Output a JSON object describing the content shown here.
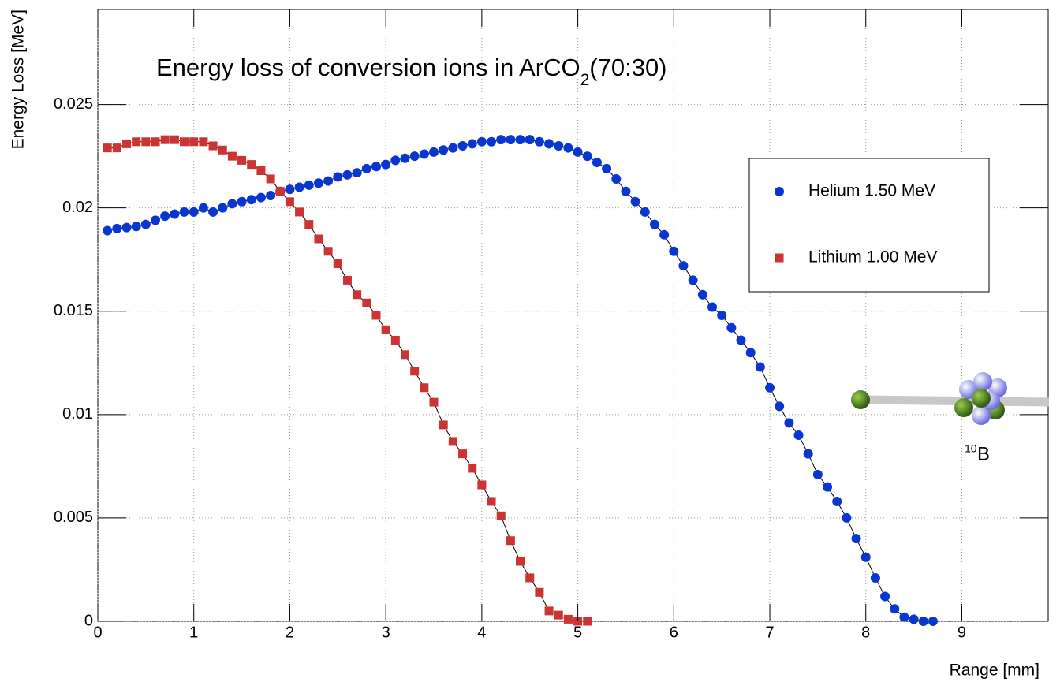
{
  "chart_data": {
    "type": "scatter",
    "title": "Energy loss of conversion ions in ArCO",
    "title_subscript": "2",
    "title_suffix": "(70:30)",
    "x_label": "Range [mm]",
    "y_label": "Energy Loss [MeV]",
    "xlim": [
      0,
      9.9
    ],
    "ylim": [
      0,
      0.0296
    ],
    "xticks": [
      0,
      1,
      2,
      3,
      4,
      5,
      6,
      7,
      8,
      9
    ],
    "yticks": [
      0,
      0.005,
      0.01,
      0.015,
      0.02,
      0.025
    ],
    "grid": true,
    "legend": "upper right",
    "isotope_label": {
      "mass_number": "10",
      "symbol": "B"
    },
    "series": [
      {
        "name": "Helium 1.50 MeV",
        "color": "#0a36d0",
        "marker": "circle",
        "x": [
          0.1,
          0.2,
          0.3,
          0.4,
          0.5,
          0.6,
          0.7,
          0.8,
          0.9,
          1.0,
          1.1,
          1.2,
          1.3,
          1.4,
          1.5,
          1.6,
          1.7,
          1.8,
          1.9,
          2.0,
          2.1,
          2.2,
          2.3,
          2.4,
          2.5,
          2.6,
          2.7,
          2.8,
          2.9,
          3.0,
          3.1,
          3.2,
          3.3,
          3.4,
          3.5,
          3.6,
          3.7,
          3.8,
          3.9,
          4.0,
          4.1,
          4.2,
          4.3,
          4.4,
          4.5,
          4.6,
          4.7,
          4.8,
          4.9,
          5.0,
          5.1,
          5.2,
          5.3,
          5.4,
          5.5,
          5.6,
          5.7,
          5.8,
          5.9,
          6.0,
          6.1,
          6.2,
          6.3,
          6.4,
          6.5,
          6.6,
          6.7,
          6.8,
          6.9,
          7.0,
          7.1,
          7.2,
          7.3,
          7.4,
          7.5,
          7.6,
          7.7,
          7.8,
          7.9,
          8.0,
          8.1,
          8.2,
          8.3,
          8.4,
          8.5,
          8.6,
          8.7
        ],
        "values": [
          0.0189,
          0.019,
          0.01905,
          0.0191,
          0.0192,
          0.0194,
          0.0196,
          0.0197,
          0.0198,
          0.0198,
          0.02,
          0.0198,
          0.02,
          0.0202,
          0.0203,
          0.0204,
          0.0205,
          0.0206,
          0.0208,
          0.0209,
          0.021,
          0.0211,
          0.0212,
          0.0213,
          0.0215,
          0.0216,
          0.0217,
          0.0219,
          0.022,
          0.0221,
          0.0223,
          0.0224,
          0.0225,
          0.0226,
          0.0227,
          0.0228,
          0.0229,
          0.023,
          0.0231,
          0.0232,
          0.0232,
          0.0233,
          0.0233,
          0.0233,
          0.0233,
          0.0232,
          0.0231,
          0.023,
          0.0229,
          0.0227,
          0.0225,
          0.0222,
          0.0219,
          0.0214,
          0.0208,
          0.0203,
          0.0198,
          0.0192,
          0.0187,
          0.0179,
          0.0172,
          0.0165,
          0.0158,
          0.0152,
          0.0148,
          0.0142,
          0.0136,
          0.013,
          0.0123,
          0.0113,
          0.0104,
          0.0096,
          0.009,
          0.0081,
          0.0071,
          0.0065,
          0.0058,
          0.005,
          0.004,
          0.0031,
          0.0021,
          0.0012,
          0.0006,
          0.0002,
          0.0001,
          0,
          0
        ]
      },
      {
        "name": "Lithium 1.00 MeV",
        "color": "#cc3333",
        "marker": "square",
        "x": [
          0.1,
          0.2,
          0.3,
          0.4,
          0.5,
          0.6,
          0.7,
          0.8,
          0.9,
          1.0,
          1.1,
          1.2,
          1.3,
          1.4,
          1.5,
          1.6,
          1.7,
          1.8,
          1.9,
          2.0,
          2.1,
          2.2,
          2.3,
          2.4,
          2.5,
          2.6,
          2.7,
          2.8,
          2.9,
          3.0,
          3.1,
          3.2,
          3.3,
          3.4,
          3.5,
          3.6,
          3.7,
          3.8,
          3.9,
          4.0,
          4.1,
          4.2,
          4.3,
          4.4,
          4.5,
          4.6,
          4.7,
          4.8,
          4.9,
          5.0,
          5.1
        ],
        "values": [
          0.0229,
          0.0229,
          0.0231,
          0.0232,
          0.0232,
          0.0232,
          0.0233,
          0.0233,
          0.0232,
          0.0232,
          0.0232,
          0.023,
          0.0228,
          0.0225,
          0.0223,
          0.0221,
          0.0218,
          0.0214,
          0.0208,
          0.0203,
          0.0198,
          0.0192,
          0.0185,
          0.0179,
          0.0173,
          0.0165,
          0.0158,
          0.0154,
          0.0148,
          0.0141,
          0.0136,
          0.0129,
          0.0121,
          0.0113,
          0.0106,
          0.0095,
          0.0087,
          0.0081,
          0.0074,
          0.0066,
          0.0058,
          0.0051,
          0.0039,
          0.0029,
          0.0021,
          0.0014,
          0.0005,
          0.0003,
          0.0001,
          0,
          0
        ]
      }
    ]
  }
}
